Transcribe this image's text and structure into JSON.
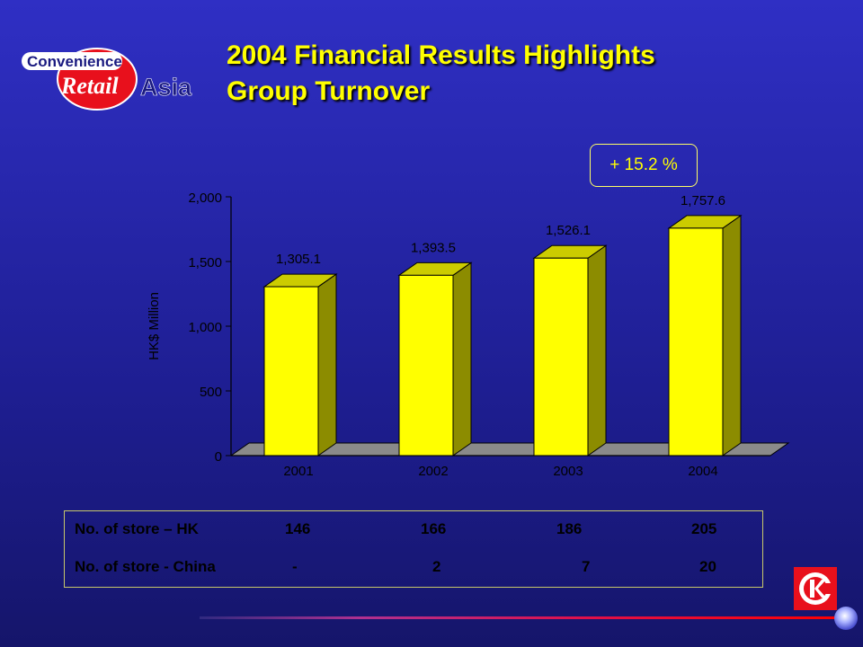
{
  "slide": {
    "title_line1": "2004 Financial Results Highlights",
    "title_line2": "Group Turnover",
    "logo_text_top": "Convenience",
    "logo_text_retail": "Retail",
    "logo_text_asia": "Asia",
    "growth_label": "+ 15.2 %"
  },
  "colors": {
    "bar_front": "#ffff00",
    "bar_side": "#8c8c00",
    "bar_top": "#cccc00",
    "title": "#ffff00",
    "background": "#2424a8"
  },
  "chart_data": {
    "type": "bar",
    "categories": [
      "2001",
      "2002",
      "2003",
      "2004"
    ],
    "values": [
      1305.1,
      1393.5,
      1526.1,
      1757.6
    ],
    "data_labels": [
      "1,305.1",
      "1,393.5",
      "1,526.1",
      "1,757.6"
    ],
    "ylabel": "HK$ Million",
    "ylim": [
      0,
      2000
    ],
    "yticks": [
      0,
      500,
      1000,
      1500,
      2000
    ],
    "ytick_labels": [
      "0",
      "500",
      "1,000",
      "1,500",
      "2,000"
    ],
    "grid": false,
    "style": "3d"
  },
  "store_table": {
    "rows": [
      {
        "label": "No. of store – HK",
        "values": [
          "146",
          "166",
          "186",
          "205"
        ]
      },
      {
        "label": "No. of store - China",
        "values": [
          "-",
          "2",
          "7",
          "20"
        ]
      }
    ]
  },
  "icons": {
    "brand_logo": "circle-k-logo-icon",
    "footer_ornament": "glow-dot-icon"
  }
}
